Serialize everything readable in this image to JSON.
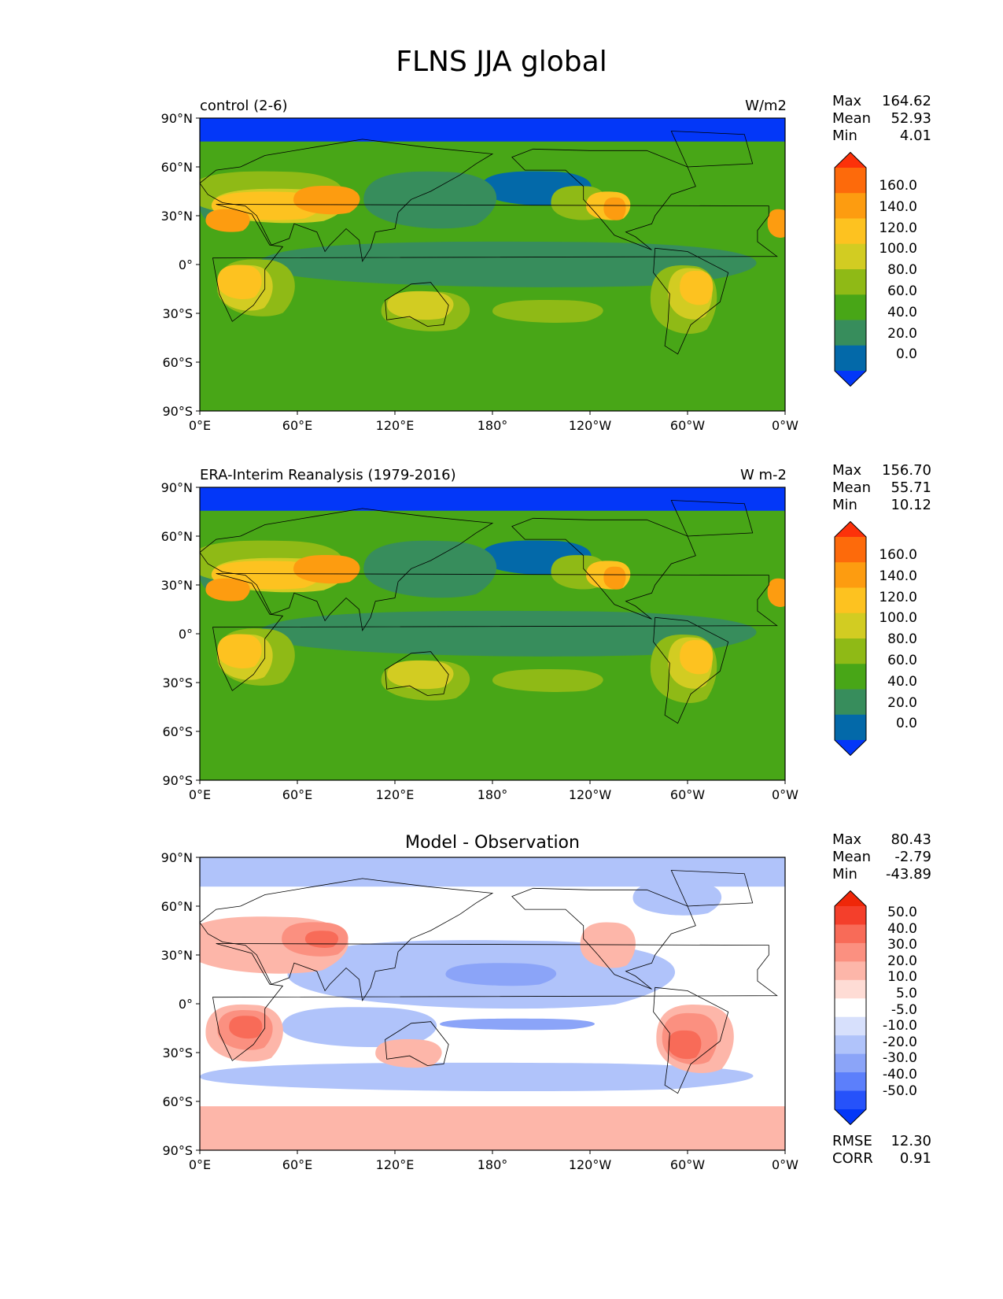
{
  "title": "FLNS JJA global",
  "x_ticks": [
    "0°E",
    "60°E",
    "120°E",
    "180°",
    "120°W",
    "60°W",
    "0°W"
  ],
  "y_ticks": [
    "90°N",
    "60°N",
    "30°N",
    "0°",
    "30°S",
    "60°S",
    "90°S"
  ],
  "colors": {
    "field_levels": [
      "#0337f8",
      "#0369a9",
      "#378d5c",
      "#48a617",
      "#8fba16",
      "#d2cc22",
      "#fdc220",
      "#fd9c10",
      "#fd6a0b",
      "#fc310a"
    ],
    "diff_levels": [
      "#0337f8",
      "#2652fa",
      "#5c7ffb",
      "#8ba4f8",
      "#b0c3fa",
      "#d7e0fc",
      "#ffffff",
      "#fedcd5",
      "#fdb6a9",
      "#fb9080",
      "#f86b58",
      "#f43f2b",
      "#ef2709"
    ],
    "land_outline": "#000000"
  },
  "panels": [
    {
      "id": "control",
      "title_left": "control (2-6)",
      "title_right": "W/m2",
      "stats": [
        {
          "label": "Max",
          "value": "164.62"
        },
        {
          "label": "Mean",
          "value": "52.93"
        },
        {
          "label": "Min",
          "value": "4.01"
        }
      ],
      "colorbar_ticks": [
        "160.0",
        "140.0",
        "120.0",
        "100.0",
        "80.0",
        "60.0",
        "40.0",
        "20.0",
        "0.0"
      ]
    },
    {
      "id": "reference",
      "title_left": "ERA-Interim Reanalysis (1979-2016)",
      "title_right": "W m-2",
      "stats": [
        {
          "label": "Max",
          "value": "156.70"
        },
        {
          "label": "Mean",
          "value": "55.71"
        },
        {
          "label": "Min",
          "value": "10.12"
        }
      ],
      "colorbar_ticks": [
        "160.0",
        "140.0",
        "120.0",
        "100.0",
        "80.0",
        "60.0",
        "40.0",
        "20.0",
        "0.0"
      ]
    },
    {
      "id": "difference",
      "title_center": "Model - Observation",
      "stats": [
        {
          "label": "Max",
          "value": "80.43"
        },
        {
          "label": "Mean",
          "value": "-2.79"
        },
        {
          "label": "Min",
          "value": "-43.89"
        }
      ],
      "colorbar_ticks": [
        "50.0",
        "40.0",
        "30.0",
        "20.0",
        "10.0",
        "5.0",
        "-5.0",
        "-10.0",
        "-20.0",
        "-30.0",
        "-40.0",
        "-50.0"
      ],
      "extra_stats": [
        {
          "label": "RMSE",
          "value": "12.30"
        },
        {
          "label": "CORR",
          "value": "0.91"
        }
      ]
    }
  ]
}
